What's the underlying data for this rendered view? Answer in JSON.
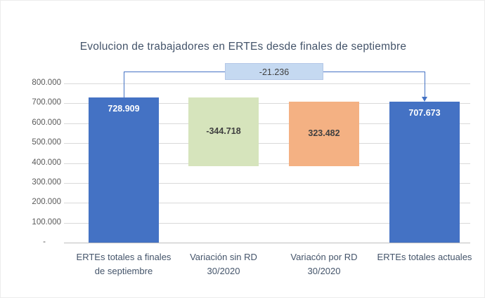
{
  "chart_data": {
    "type": "bar",
    "subtype": "waterfall",
    "title": "Evolucion de trabajadores en ERTEs desde finales de septiembre",
    "ylim": [
      0,
      800000
    ],
    "ytick_step": 100000,
    "ytick_labels": [
      "800.000",
      "700.000",
      "600.000",
      "500.000",
      "400.000",
      "300.000",
      "200.000",
      "100.000",
      "-"
    ],
    "grid": true,
    "bars": [
      {
        "category": "ERTEs totales a finales de septiembre",
        "category_lines": [
          "ERTEs totales a finales",
          "de septiembre"
        ],
        "start": 0,
        "end": 728909,
        "label": "728.909",
        "color": "#4472c4",
        "label_color": "#ffffff",
        "label_pos": "inside-top"
      },
      {
        "category": "Variación sin RD 30/2020",
        "category_lines": [
          "Variación sin RD",
          "30/2020"
        ],
        "start": 384191,
        "end": 728909,
        "label": "-344.718",
        "color": "#d6e4bc",
        "label_color": "#404040",
        "label_pos": "middle"
      },
      {
        "category": "Variacón por RD 30/2020",
        "category_lines": [
          "Variacón por RD",
          "30/2020"
        ],
        "start": 384191,
        "end": 707673,
        "label": "323.482",
        "color": "#f4b183",
        "label_color": "#404040",
        "label_pos": "middle"
      },
      {
        "category": "ERTEs totales actuales",
        "category_lines": [
          "ERTEs totales actuales"
        ],
        "start": 0,
        "end": 707673,
        "label": "707.673",
        "color": "#4472c4",
        "label_color": "#ffffff",
        "label_pos": "inside-top"
      }
    ],
    "connector": {
      "label": "-21.236",
      "from_bar": 0,
      "to_bar": 3,
      "box_color": "#c5d9f1",
      "line_color": "#4472c4"
    }
  }
}
